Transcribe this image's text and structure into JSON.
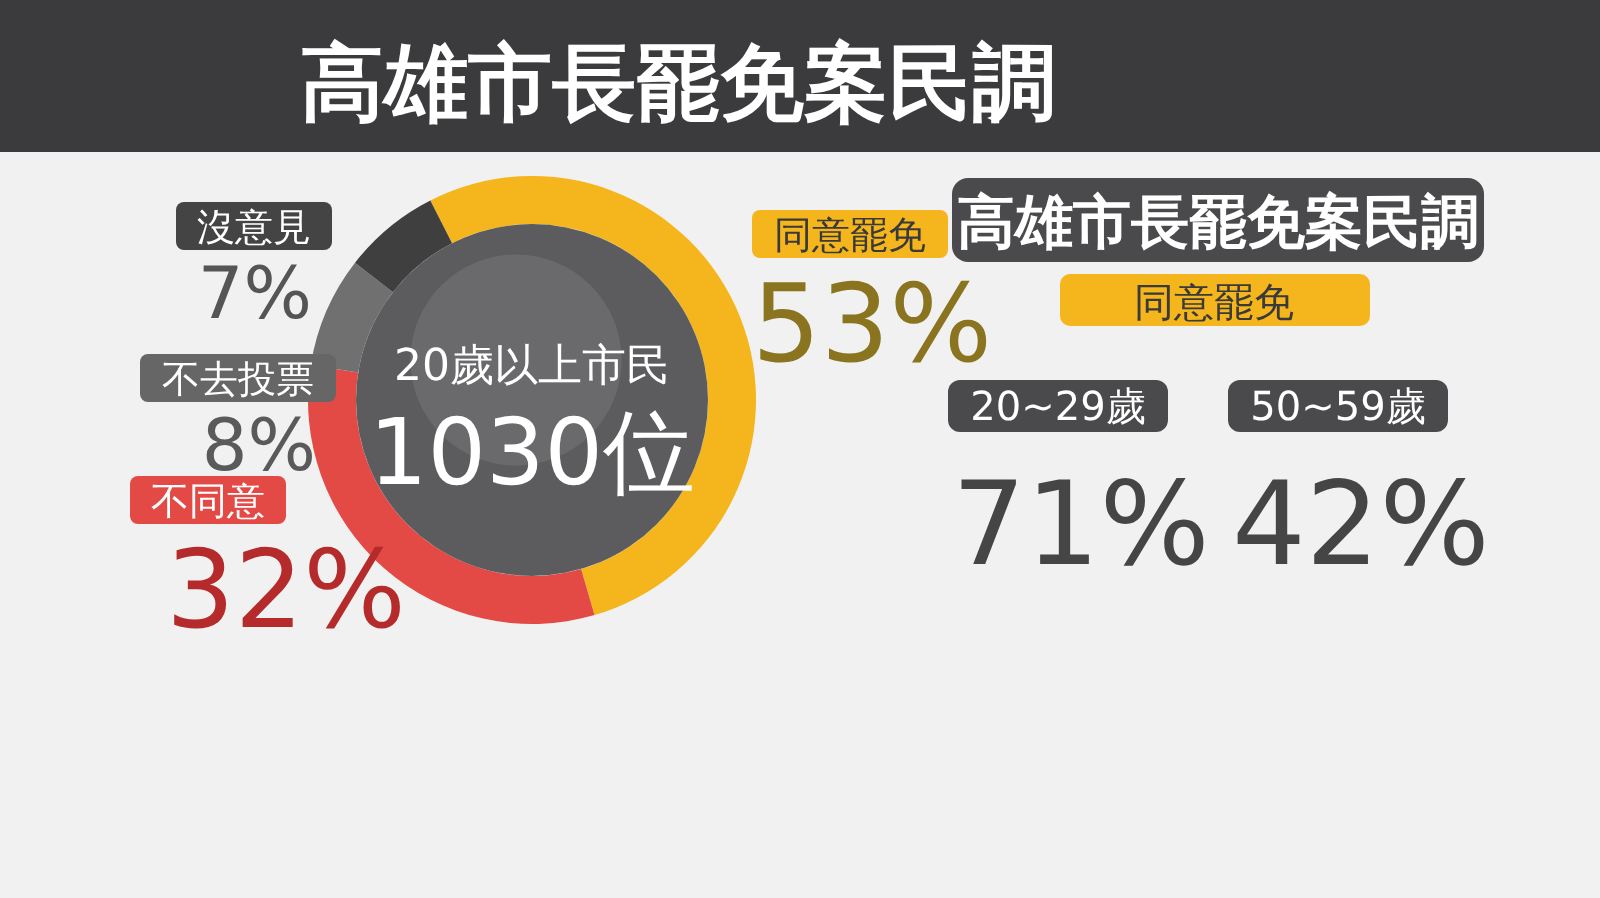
{
  "chart_data": [
    {
      "type": "donut",
      "title": "高雄市長罷免案民調",
      "categories": [
        "同意罷免",
        "不同意",
        "不去投票",
        "沒意見"
      ],
      "values": [
        53,
        32,
        8,
        7
      ],
      "colors": [
        "#f5b51c",
        "#e34a45",
        "#707070",
        "#3f3f3f"
      ],
      "value_labels": [
        "53%",
        "32%",
        "8%",
        "7%"
      ],
      "annotations": [
        "20歲以上市民",
        "1030位"
      ]
    },
    {
      "type": "other",
      "title": "高雄市長罷免案民調",
      "subtitle": "同意罷免",
      "annotations": [
        "20~29歲",
        "71%",
        "50~59歲",
        "42%"
      ]
    }
  ]
}
